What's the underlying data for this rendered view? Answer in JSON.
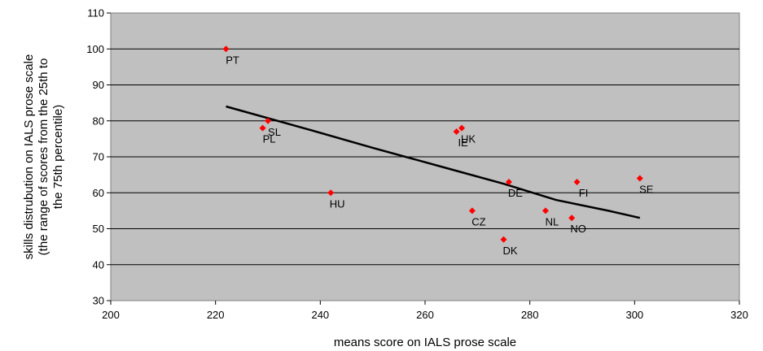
{
  "chart_data": {
    "type": "scatter",
    "title": "",
    "xlabel": "means score on IALS prose scale",
    "ylabel_lines": [
      "skills distrubution on IALS prose scale",
      "(the range of scores from the 25th to",
      "the 75th percentile)"
    ],
    "xlim": [
      200,
      320
    ],
    "ylim": [
      30,
      110
    ],
    "xticks": [
      200,
      220,
      240,
      260,
      280,
      300,
      320
    ],
    "yticks": [
      30,
      40,
      50,
      60,
      70,
      80,
      90,
      100,
      110
    ],
    "grid": "horizontal",
    "plot_background": "#c0c0c0",
    "marker_color": "#ff0000",
    "trend_color": "#000000",
    "points": [
      {
        "label": "PT",
        "x": 222,
        "y": 100
      },
      {
        "label": "SL",
        "x": 230,
        "y": 80
      },
      {
        "label": "PL",
        "x": 229,
        "y": 78
      },
      {
        "label": "HU",
        "x": 242,
        "y": 60
      },
      {
        "label": "IE",
        "x": 266,
        "y": 77
      },
      {
        "label": "UK",
        "x": 267,
        "y": 78
      },
      {
        "label": "DE",
        "x": 276,
        "y": 63
      },
      {
        "label": "CZ",
        "x": 269,
        "y": 55
      },
      {
        "label": "DK",
        "x": 275,
        "y": 47
      },
      {
        "label": "NL",
        "x": 283,
        "y": 55
      },
      {
        "label": "FI",
        "x": 289,
        "y": 63
      },
      {
        "label": "NO",
        "x": 288,
        "y": 53
      },
      {
        "label": "SE",
        "x": 301,
        "y": 64
      }
    ],
    "trendline": [
      {
        "x": 222,
        "y": 84
      },
      {
        "x": 238,
        "y": 77.5
      },
      {
        "x": 250,
        "y": 72.5
      },
      {
        "x": 265,
        "y": 66.5
      },
      {
        "x": 275,
        "y": 62.5
      },
      {
        "x": 285,
        "y": 58
      },
      {
        "x": 295,
        "y": 55
      },
      {
        "x": 301,
        "y": 53
      }
    ]
  }
}
